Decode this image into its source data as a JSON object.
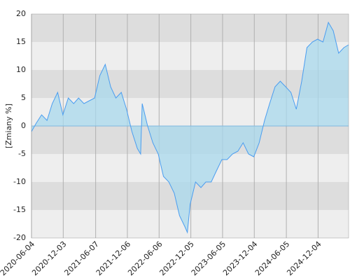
{
  "chart_data": {
    "type": "area",
    "ylabel": "[Zmiany %]",
    "x": [
      "2020-06-04",
      "2020-07-01",
      "2020-08-01",
      "2020-09-01",
      "2020-10-01",
      "2020-11-01",
      "2020-12-01",
      "2021-01-01",
      "2021-02-01",
      "2021-03-01",
      "2021-04-01",
      "2021-05-01",
      "2021-06-01",
      "2021-07-01",
      "2021-08-01",
      "2021-09-01",
      "2021-10-01",
      "2021-11-01",
      "2021-12-01",
      "2022-01-01",
      "2022-02-01",
      "2022-02-20",
      "2022-03-01",
      "2022-04-01",
      "2022-05-01",
      "2022-06-01",
      "2022-07-01",
      "2022-08-01",
      "2022-09-01",
      "2022-10-01",
      "2022-11-01",
      "2022-11-15",
      "2022-12-01",
      "2023-01-01",
      "2023-02-01",
      "2023-03-01",
      "2023-04-01",
      "2023-05-01",
      "2023-06-01",
      "2023-07-01",
      "2023-08-01",
      "2023-09-01",
      "2023-10-01",
      "2023-11-01",
      "2023-12-01",
      "2024-01-01",
      "2024-02-01",
      "2024-03-01",
      "2024-04-01",
      "2024-05-01",
      "2024-06-01",
      "2024-07-01",
      "2024-08-01",
      "2024-09-01",
      "2024-10-01",
      "2024-11-01",
      "2024-12-01",
      "2025-01-01",
      "2025-02-01",
      "2025-03-01",
      "2025-04-01",
      "2025-05-01",
      "2025-05-28"
    ],
    "series": [
      {
        "color": "#4a9df0",
        "fill": "#a8d8ec",
        "values": [
          -1,
          0.5,
          2,
          1,
          4,
          6,
          2,
          5,
          4,
          5,
          4,
          4.5,
          5,
          9,
          11,
          7,
          5,
          6,
          3,
          -1,
          -4,
          -5,
          4,
          0,
          -3,
          -5,
          -9,
          -10,
          -12,
          -16,
          -18,
          -19,
          -14,
          -10,
          -11,
          -10,
          -10,
          -8,
          -6,
          -6,
          -5,
          -4.5,
          -3,
          -5,
          -5.5,
          -3,
          1,
          4,
          7,
          8,
          7,
          6,
          3,
          8,
          14,
          15,
          15.5,
          15,
          18.5,
          17,
          13,
          14,
          14.5
        ]
      }
    ],
    "xlim": [
      "2020-06-04",
      "2025-05-28"
    ],
    "xticks": [
      "2020-06-04",
      "2020-12-03",
      "2021-06-07",
      "2021-12-06",
      "2022-06-06",
      "2022-12-05",
      "2023-06-05",
      "2023-12-04",
      "2024-06-05",
      "2024-12-04"
    ],
    "ylim": [
      -20,
      20
    ],
    "yticks": [
      -20,
      -15,
      -10,
      -5,
      0,
      5,
      10,
      15,
      20
    ],
    "grid": true
  }
}
